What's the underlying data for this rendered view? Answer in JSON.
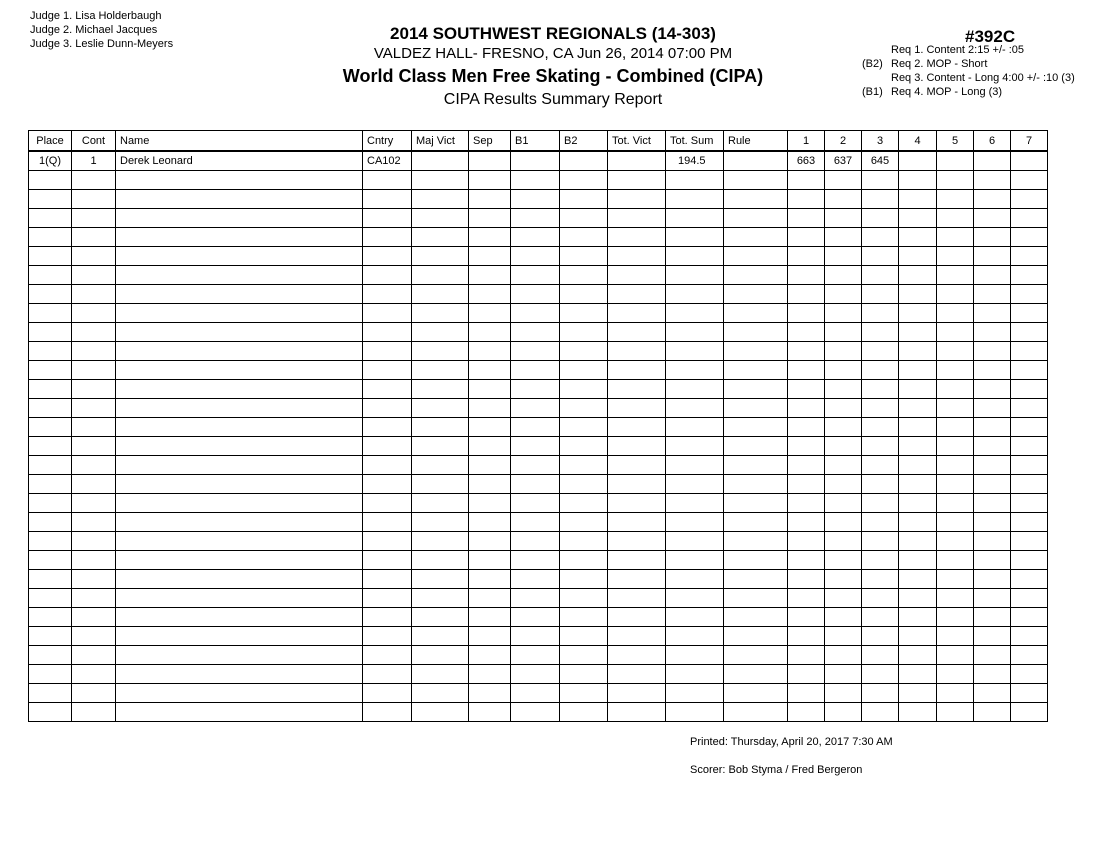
{
  "judges": [
    "Judge  1.  Lisa Holderbaugh",
    "Judge  2.  Michael Jacques",
    "Judge  3.  Leslie Dunn-Meyers"
  ],
  "header": {
    "title": "2014 SOUTHWEST REGIONALS (14-303)",
    "venue": "VALDEZ HALL- FRESNO, CA  Jun 26, 2014  07:00 PM",
    "event": "World Class Men Free Skating - Combined (CIPA)",
    "report": "CIPA Results Summary Report",
    "event_number": "#392C"
  },
  "requirements": [
    {
      "prefix": "",
      "text": "Req  1.  Content 2:15 +/- :05"
    },
    {
      "prefix": "(B2)",
      "text": "Req  2.  MOP - Short"
    },
    {
      "prefix": "",
      "text": "Req  3.  Content - Long 4:00 +/- :10 (3)"
    },
    {
      "prefix": "(B1)",
      "text": "Req  4.  MOP - Long (3)"
    }
  ],
  "table": {
    "columns": [
      "Place",
      "Cont",
      "Name",
      "Cntry",
      "Maj Vict",
      "Sep",
      "B1",
      "B2",
      "Tot. Vict",
      "Tot. Sum",
      "Rule",
      "1",
      "2",
      "3",
      "4",
      "5",
      "6",
      "7"
    ],
    "rows": [
      [
        "1(Q)",
        "1",
        "Derek Leonard",
        "CA102",
        "",
        "",
        "",
        "",
        "",
        "194.5",
        "",
        "663",
        "637",
        "645",
        "",
        "",
        "",
        ""
      ]
    ]
  },
  "footer": {
    "printed": "Printed:  Thursday, April 20, 2017  7:30 AM",
    "scorer": "Scorer:  Bob Styma / Fred Bergeron"
  }
}
